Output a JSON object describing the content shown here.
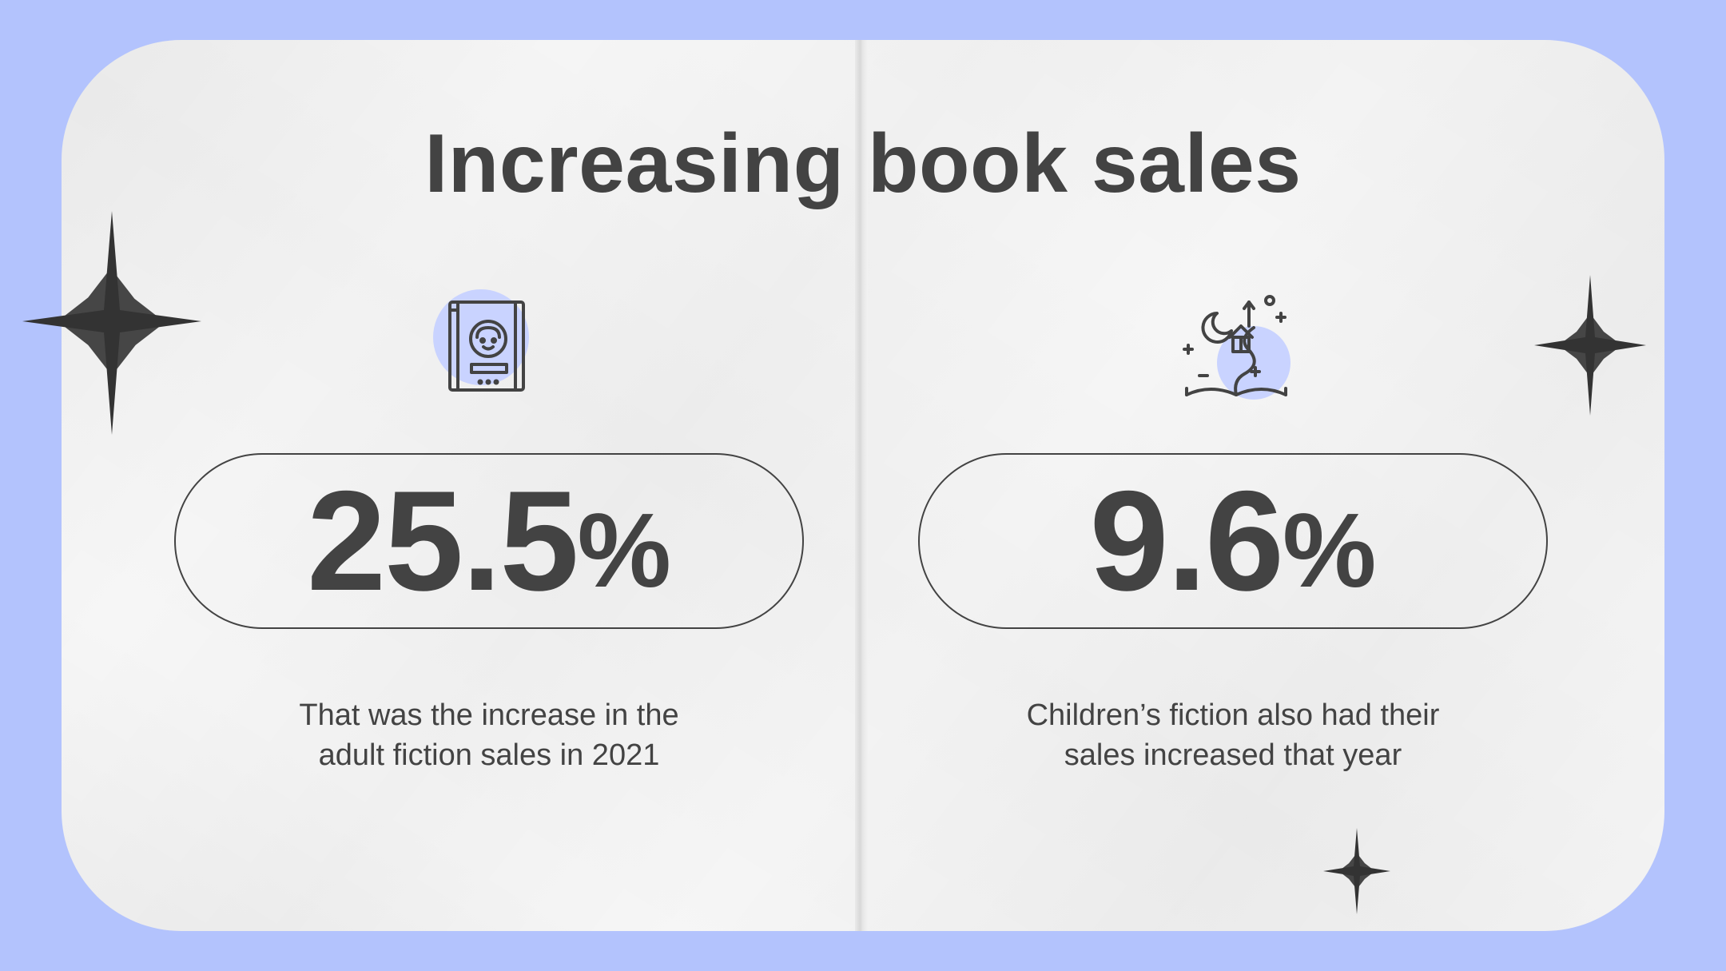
{
  "slide": {
    "title": "Increasing book sales",
    "colors": {
      "background": "#b3c3fd",
      "paper": "#f6f6f6",
      "text": "#434343",
      "accent": "#c9d3ff"
    }
  },
  "stats": [
    {
      "value": "25.5",
      "unit": "%",
      "description_line1": "That was the increase in the",
      "description_line2": "adult fiction sales in 2021",
      "icon": "book-icon"
    },
    {
      "value": "9.6",
      "unit": "%",
      "description_line1": "Children’s fiction also had their",
      "description_line2": "sales increased that year",
      "icon": "fairytale-book-icon"
    }
  ],
  "decorations": [
    "sparkle-icon",
    "sparkle-icon",
    "sparkle-icon"
  ]
}
